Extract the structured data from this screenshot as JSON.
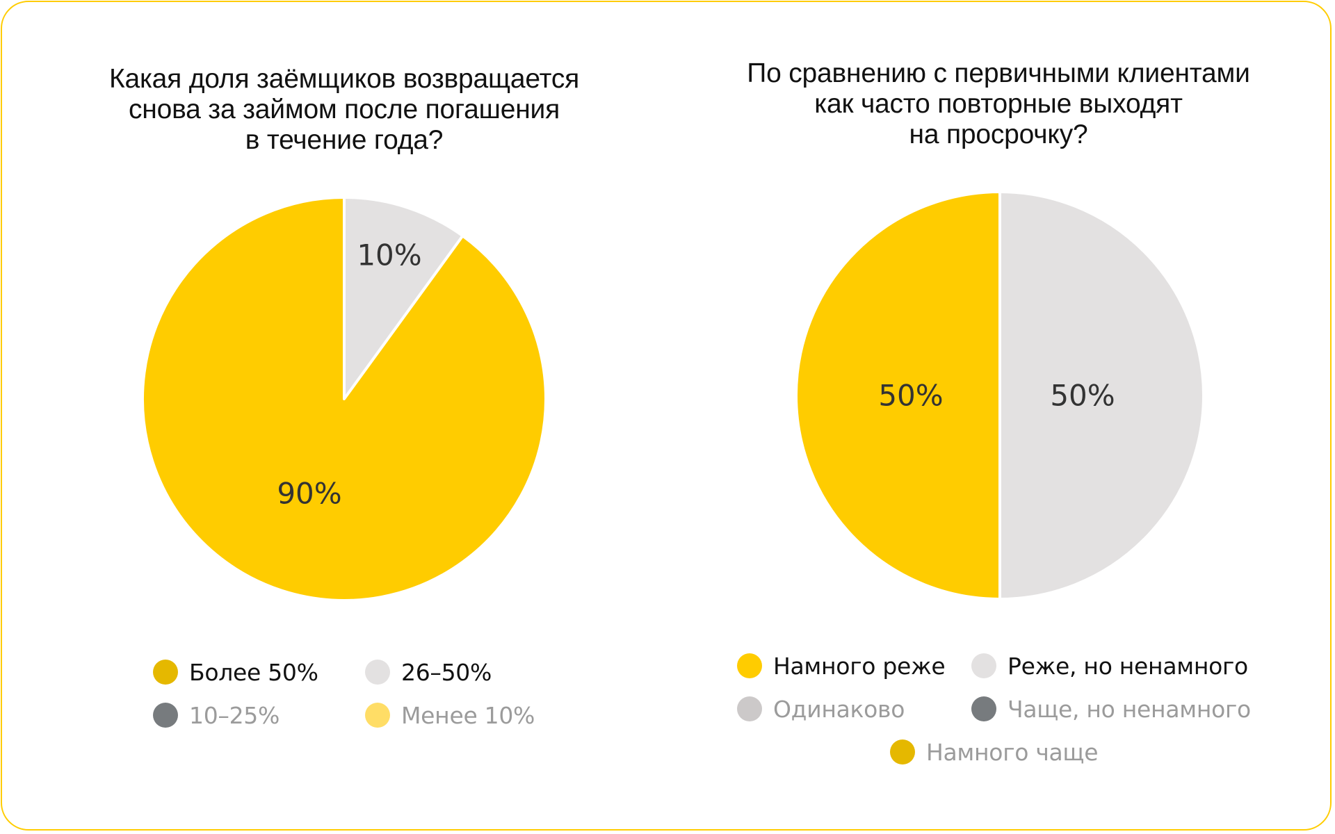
{
  "colors": {
    "border": "#FFCC00",
    "yellow": "#FFCC00",
    "dark_yellow": "#E5B800",
    "light_gray": "#E3E1E1",
    "mid_gray": "#CCC9C9",
    "dark_gray": "#777B7E",
    "pale_yellow": "#FFDD66",
    "label": "#333333"
  },
  "chart_data": [
    {
      "type": "pie",
      "title": "Какая доля заёмщиков возвращается снова за займом после погашения в течение года?",
      "title_lines": [
        "Какая доля заёмщиков возвращается",
        "снова за займом после погашения",
        "в течение года?"
      ],
      "categories": [
        "Более 50%",
        "26–50%",
        "10–25%",
        "Менее 10%"
      ],
      "values": [
        90,
        10,
        0,
        0
      ],
      "slice_labels": [
        "90%",
        "10%"
      ],
      "legend_position": "bottom",
      "legend": [
        {
          "label": "Более 50%",
          "color": "#E5B800",
          "active": true
        },
        {
          "label": "26–50%",
          "color": "#E3E1E1",
          "active": true
        },
        {
          "label": "10–25%",
          "color": "#777B7E",
          "active": false
        },
        {
          "label": "Менее 10%",
          "color": "#FFDD66",
          "active": false
        }
      ]
    },
    {
      "type": "pie",
      "title": "По сравнению с первичными клиентами как часто повторные выходят на просрочку?",
      "title_lines": [
        "По сравнению с первичными клиентами",
        "как часто повторные выходят",
        "на просрочку?"
      ],
      "categories": [
        "Намного реже",
        "Реже, но ненамного",
        "Одинаково",
        "Чаще, но ненамного",
        "Намного чаще"
      ],
      "values": [
        50,
        50,
        0,
        0,
        0
      ],
      "slice_labels": [
        "50%",
        "50%"
      ],
      "legend_position": "bottom",
      "legend": [
        {
          "label": "Намного реже",
          "color": "#FFCC00",
          "active": true
        },
        {
          "label": "Реже, но ненамного",
          "color": "#E3E1E1",
          "active": true
        },
        {
          "label": "Одинаково",
          "color": "#CCC9C9",
          "active": false
        },
        {
          "label": "Чаще, но ненамного",
          "color": "#777B7E",
          "active": false
        },
        {
          "label": "Намного чаще",
          "color": "#E5B800",
          "active": false
        }
      ]
    }
  ]
}
